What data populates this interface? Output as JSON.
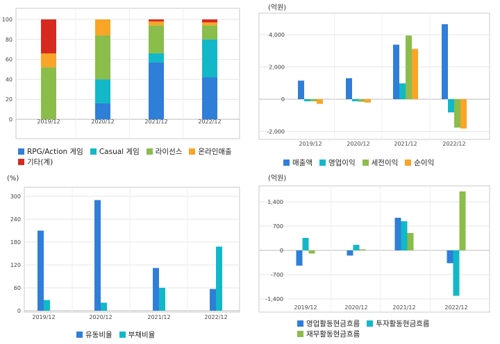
{
  "colors": {
    "blue": "#2f7ed8",
    "teal": "#12b8c8",
    "green": "#8bbd4a",
    "orange": "#f8a528",
    "red": "#d8291f"
  },
  "chart_data": [
    {
      "id": "revenue-mix",
      "type": "bar",
      "stacked": true,
      "unit": "",
      "categories": [
        "2019/12",
        "2020/12",
        "2021/12",
        "2022/12"
      ],
      "ylim": [
        0,
        100
      ],
      "yticks": [
        "0",
        "20",
        "40",
        "60",
        "80",
        "100"
      ],
      "series": [
        {
          "name": "RPG/Action 게임",
          "color": "#2f7ed8",
          "values": [
            0,
            16,
            57,
            42
          ]
        },
        {
          "name": "Casual 게임",
          "color": "#12b8c8",
          "values": [
            0,
            24,
            9,
            38
          ]
        },
        {
          "name": "라이선스",
          "color": "#8bbd4a",
          "values": [
            52,
            44,
            28,
            14
          ]
        },
        {
          "name": "온라인매출",
          "color": "#f8a528",
          "values": [
            14,
            16,
            4,
            3
          ]
        },
        {
          "name": "기타(계)",
          "color": "#d8291f",
          "values": [
            34,
            0,
            2,
            3
          ]
        }
      ],
      "legend_position": "bottom"
    },
    {
      "id": "income",
      "type": "bar",
      "unit": "(억원)",
      "categories": [
        "2019/12",
        "2020/12",
        "2021/12",
        "2022/12"
      ],
      "ylim": [
        -2000,
        4000
      ],
      "yticks": [
        "-2,000",
        "0",
        "2,000",
        "4,000"
      ],
      "series": [
        {
          "name": "매출액",
          "color": "#2f7ed8",
          "values": [
            1150,
            1300,
            3380,
            4650
          ]
        },
        {
          "name": "영업이익",
          "color": "#12b8c8",
          "values": [
            -130,
            -130,
            980,
            -820
          ]
        },
        {
          "name": "세전이익",
          "color": "#8bbd4a",
          "values": [
            -130,
            -160,
            3950,
            -1760
          ]
        },
        {
          "name": "순이익",
          "color": "#f8a528",
          "values": [
            -290,
            -210,
            3120,
            -1820
          ]
        }
      ],
      "legend_position": "bottom"
    },
    {
      "id": "ratios",
      "type": "bar",
      "unit": "(%)",
      "categories": [
        "2019/12",
        "2020/12",
        "2021/12",
        "2022/12"
      ],
      "ylim": [
        0,
        300
      ],
      "yticks": [
        "0",
        "60",
        "120",
        "180",
        "240",
        "300"
      ],
      "series": [
        {
          "name": "유동비율",
          "color": "#2f7ed8",
          "values": [
            210,
            290,
            112,
            57
          ]
        },
        {
          "name": "부채비율",
          "color": "#12b8c8",
          "values": [
            28,
            21,
            60,
            168
          ]
        }
      ],
      "legend_position": "bottom"
    },
    {
      "id": "cashflow",
      "type": "bar",
      "unit": "(억원)",
      "categories": [
        "2019/12",
        "2020/12",
        "2021/12",
        "2022/12"
      ],
      "ylim": [
        -1400,
        1400
      ],
      "yticks": [
        "-1,400",
        "-700",
        "0",
        "700",
        "1,400"
      ],
      "series": [
        {
          "name": "영업활동현금흐름",
          "color": "#2f7ed8",
          "values": [
            -440,
            -150,
            940,
            -370
          ]
        },
        {
          "name": "투자활동현금흐름",
          "color": "#12b8c8",
          "values": [
            360,
            160,
            840,
            -1310
          ]
        },
        {
          "name": "재무활동현금흐름",
          "color": "#8bbd4a",
          "values": [
            -90,
            30,
            500,
            1700
          ]
        }
      ],
      "legend_position": "bottom"
    }
  ]
}
